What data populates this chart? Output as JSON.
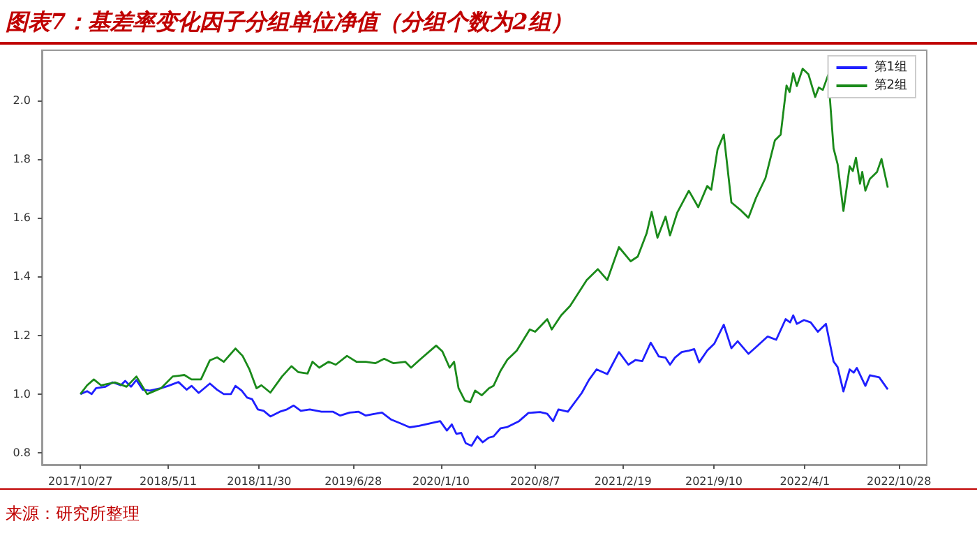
{
  "chart_data": {
    "type": "line",
    "title": "图表7：基差率变化因子分组单位净值（分组个数为2组）",
    "annotations": [
      "来源：研究所整理"
    ],
    "legend": "top right",
    "xlim": [
      "2017-08-02",
      "2022-12-29"
    ],
    "xticks": [
      {
        "value": "2017-10-27",
        "label": "2017/10/27"
      },
      {
        "value": "2018-05-11",
        "label": "2018/5/11"
      },
      {
        "value": "2018-11-30",
        "label": "2018/11/30"
      },
      {
        "value": "2019-06-28",
        "label": "2019/6/28"
      },
      {
        "value": "2020-01-10",
        "label": "2020/1/10"
      },
      {
        "value": "2020-08-07",
        "label": "2020/8/7"
      },
      {
        "value": "2021-02-19",
        "label": "2021/2/19"
      },
      {
        "value": "2021-09-10",
        "label": "2021/9/10"
      },
      {
        "value": "2022-04-01",
        "label": "2022/4/1"
      },
      {
        "value": "2022-10-28",
        "label": "2022/10/28"
      }
    ],
    "ylim": [
      0.76,
      2.17
    ],
    "yticks": [
      {
        "value": 0.8,
        "label": "0.8"
      },
      {
        "value": 1,
        "label": "1.0"
      },
      {
        "value": 1.2,
        "label": "1.2"
      },
      {
        "value": 1.4,
        "label": "1.4"
      },
      {
        "value": 1.6,
        "label": "1.6"
      },
      {
        "value": 1.8,
        "label": "1.8"
      },
      {
        "value": 2,
        "label": "2.0"
      }
    ],
    "series": [
      {
        "name": "第1组",
        "color": "#1f1fff",
        "x": [
          "2017-10-27",
          "2017-11-11",
          "2017-11-21",
          "2017-12-01",
          "2017-12-22",
          "2018-01-07",
          "2018-01-25",
          "2018-02-04",
          "2018-02-17",
          "2018-03-01",
          "2018-03-15",
          "2018-03-31",
          "2018-04-25",
          "2018-05-11",
          "2018-06-03",
          "2018-06-21",
          "2018-07-02",
          "2018-07-18",
          "2018-08-12",
          "2018-08-28",
          "2018-09-12",
          "2018-09-28",
          "2018-10-08",
          "2018-10-22",
          "2018-11-03",
          "2018-11-14",
          "2018-11-27",
          "2018-12-10",
          "2018-12-25",
          "2019-01-15",
          "2019-01-31",
          "2019-02-15",
          "2019-03-03",
          "2019-03-23",
          "2019-04-18",
          "2019-05-14",
          "2019-05-30",
          "2019-06-20",
          "2019-07-10",
          "2019-07-26",
          "2019-08-11",
          "2019-08-31",
          "2019-09-21",
          "2019-10-12",
          "2019-11-01",
          "2019-11-22",
          "2020-01-08",
          "2020-01-23",
          "2020-02-03",
          "2020-02-13",
          "2020-02-24",
          "2020-03-05",
          "2020-03-18",
          "2020-03-31",
          "2020-04-12",
          "2020-04-26",
          "2020-05-06",
          "2020-05-22",
          "2020-06-06",
          "2020-07-02",
          "2020-07-23",
          "2020-08-18",
          "2020-09-03",
          "2020-09-16",
          "2020-09-28",
          "2020-10-19",
          "2020-11-19",
          "2020-12-05",
          "2020-12-22",
          "2021-01-15",
          "2021-02-10",
          "2021-03-03",
          "2021-03-19",
          "2021-04-03",
          "2021-04-22",
          "2021-05-10",
          "2021-05-25",
          "2021-06-04",
          "2021-06-15",
          "2021-06-30",
          "2021-07-16",
          "2021-07-28",
          "2021-08-08",
          "2021-08-26",
          "2021-09-11",
          "2021-10-02",
          "2021-10-19",
          "2021-11-02",
          "2021-11-26",
          "2021-12-13",
          "2022-01-08",
          "2022-01-27",
          "2022-02-17",
          "2022-02-27",
          "2022-03-06",
          "2022-03-14",
          "2022-03-30",
          "2022-04-14",
          "2022-04-30",
          "2022-05-18",
          "2022-06-04",
          "2022-06-13",
          "2022-06-26",
          "2022-07-10",
          "2022-07-19",
          "2022-07-26",
          "2022-08-04",
          "2022-08-14",
          "2022-08-24",
          "2022-09-14",
          "2022-10-03"
        ],
        "values": [
          1.0,
          1.01,
          1.0,
          1.02,
          1.025,
          1.04,
          1.03,
          1.045,
          1.025,
          1.048,
          1.015,
          1.012,
          1.02,
          1.028,
          1.041,
          1.015,
          1.028,
          1.004,
          1.036,
          1.015,
          1.0,
          1.0,
          1.028,
          1.012,
          0.988,
          0.983,
          0.948,
          0.943,
          0.924,
          0.94,
          0.948,
          0.961,
          0.943,
          0.948,
          0.94,
          0.94,
          0.927,
          0.937,
          0.94,
          0.927,
          0.932,
          0.937,
          0.913,
          0.9,
          0.887,
          0.892,
          0.908,
          0.876,
          0.897,
          0.865,
          0.868,
          0.833,
          0.824,
          0.856,
          0.836,
          0.852,
          0.856,
          0.884,
          0.888,
          0.908,
          0.936,
          0.939,
          0.933,
          0.908,
          0.948,
          0.94,
          1.004,
          1.048,
          1.084,
          1.068,
          1.143,
          1.1,
          1.116,
          1.112,
          1.175,
          1.128,
          1.124,
          1.1,
          1.124,
          1.143,
          1.148,
          1.153,
          1.108,
          1.148,
          1.172,
          1.236,
          1.156,
          1.18,
          1.137,
          1.16,
          1.196,
          1.185,
          1.255,
          1.244,
          1.268,
          1.239,
          1.252,
          1.244,
          1.212,
          1.239,
          1.111,
          1.092,
          1.009,
          1.084,
          1.073,
          1.089,
          1.06,
          1.028,
          1.064,
          1.057,
          1.016
        ]
      },
      {
        "name": "第2组",
        "color": "#1a8a1a",
        "x": [
          "2017-10-27",
          "2017-11-11",
          "2017-11-26",
          "2017-12-12",
          "2018-01-12",
          "2018-02-07",
          "2018-03-01",
          "2018-03-25",
          "2018-04-25",
          "2018-05-21",
          "2018-06-16",
          "2018-07-02",
          "2018-07-23",
          "2018-08-12",
          "2018-08-28",
          "2018-09-12",
          "2018-10-08",
          "2018-10-24",
          "2018-11-08",
          "2018-11-24",
          "2018-12-05",
          "2018-12-25",
          "2019-01-20",
          "2019-02-10",
          "2019-02-25",
          "2019-03-18",
          "2019-03-29",
          "2019-04-13",
          "2019-05-04",
          "2019-05-20",
          "2019-06-14",
          "2019-07-05",
          "2019-07-26",
          "2019-08-16",
          "2019-09-05",
          "2019-09-26",
          "2019-10-22",
          "2019-11-04",
          "2019-11-22",
          "2019-12-30",
          "2020-01-13",
          "2020-01-29",
          "2020-02-08",
          "2020-02-18",
          "2020-03-03",
          "2020-03-15",
          "2020-03-26",
          "2020-04-10",
          "2020-04-26",
          "2020-05-06",
          "2020-05-22",
          "2020-06-06",
          "2020-06-27",
          "2020-07-26",
          "2020-08-07",
          "2020-09-03",
          "2020-09-13",
          "2020-10-04",
          "2020-10-24",
          "2020-11-30",
          "2020-12-25",
          "2021-01-15",
          "2021-02-10",
          "2021-03-08",
          "2021-03-24",
          "2021-04-13",
          "2021-04-24",
          "2021-05-07",
          "2021-05-25",
          "2021-06-04",
          "2021-06-20",
          "2021-07-16",
          "2021-08-06",
          "2021-08-26",
          "2021-09-04",
          "2021-09-18",
          "2021-10-02",
          "2021-10-19",
          "2021-11-07",
          "2021-11-26",
          "2021-12-13",
          "2022-01-03",
          "2022-01-24",
          "2022-02-06",
          "2022-02-19",
          "2022-02-26",
          "2022-03-06",
          "2022-03-14",
          "2022-03-27",
          "2022-04-09",
          "2022-04-24",
          "2022-05-02",
          "2022-05-11",
          "2022-05-23",
          "2022-06-04",
          "2022-06-13",
          "2022-06-26",
          "2022-07-10",
          "2022-07-17",
          "2022-07-24",
          "2022-08-02",
          "2022-08-07",
          "2022-08-14",
          "2022-08-24",
          "2022-09-09",
          "2022-09-19",
          "2022-10-03"
        ],
        "values": [
          1.0,
          1.03,
          1.05,
          1.03,
          1.04,
          1.025,
          1.06,
          1.0,
          1.02,
          1.06,
          1.065,
          1.05,
          1.05,
          1.115,
          1.125,
          1.11,
          1.155,
          1.13,
          1.085,
          1.02,
          1.03,
          1.005,
          1.06,
          1.095,
          1.075,
          1.07,
          1.11,
          1.09,
          1.11,
          1.1,
          1.13,
          1.11,
          1.11,
          1.105,
          1.12,
          1.105,
          1.11,
          1.09,
          1.115,
          1.165,
          1.145,
          1.09,
          1.11,
          1.02,
          0.978,
          0.972,
          1.012,
          0.996,
          1.02,
          1.028,
          1.08,
          1.117,
          1.148,
          1.22,
          1.212,
          1.255,
          1.22,
          1.268,
          1.3,
          1.388,
          1.425,
          1.388,
          1.5,
          1.452,
          1.468,
          1.548,
          1.62,
          1.532,
          1.604,
          1.54,
          1.617,
          1.692,
          1.636,
          1.708,
          1.695,
          1.832,
          1.883,
          1.652,
          1.628,
          1.6,
          1.668,
          1.735,
          1.863,
          1.883,
          2.05,
          2.028,
          2.092,
          2.048,
          2.107,
          2.088,
          2.011,
          2.043,
          2.035,
          2.086,
          1.836,
          1.783,
          1.623,
          1.775,
          1.759,
          1.804,
          1.716,
          1.756,
          1.692,
          1.732,
          1.756,
          1.8,
          1.703
        ]
      }
    ]
  }
}
